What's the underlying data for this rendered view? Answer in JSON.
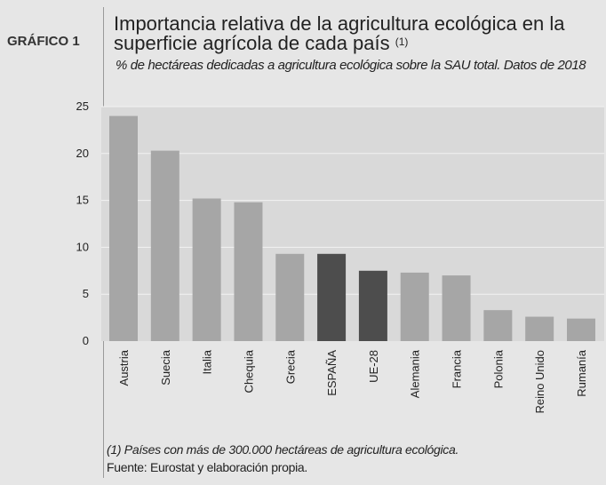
{
  "figure": {
    "label": "GRÁFICO 1",
    "title": "Importancia relativa de la agricultura ecológica en la superficie agrícola de cada país",
    "title_note": "(1)",
    "subtitle": "% de hectáreas dedicadas a agricultura ecológica sobre la SAU total. Datos de 2018",
    "footnote": "(1) Países con más de 300.000 hectáreas de agricultura ecológica.",
    "source": "Fuente: Eurostat y elaboración propia."
  },
  "chart_data": {
    "type": "bar",
    "categories": [
      "Austria",
      "Suecia",
      "Italia",
      "Chequia",
      "Grecia",
      "ESPAÑA",
      "UE-28",
      "Alemania",
      "Francia",
      "Polonia",
      "Reino Unido",
      "Rumanía"
    ],
    "values": [
      24.0,
      20.3,
      15.2,
      14.8,
      9.3,
      9.3,
      7.5,
      7.3,
      7.0,
      3.3,
      2.6,
      2.4
    ],
    "highlight": [
      "ESPAÑA",
      "UE-28"
    ],
    "ylim": [
      0,
      25
    ],
    "yticks": [
      "0",
      "5",
      "10",
      "15",
      "20",
      "25"
    ],
    "grid": true,
    "colors": {
      "plot_bg": "#d9d9d9",
      "bar": "#a6a6a6",
      "bar_highlight": "#4d4d4d",
      "grid": "#f2f2f2"
    }
  }
}
